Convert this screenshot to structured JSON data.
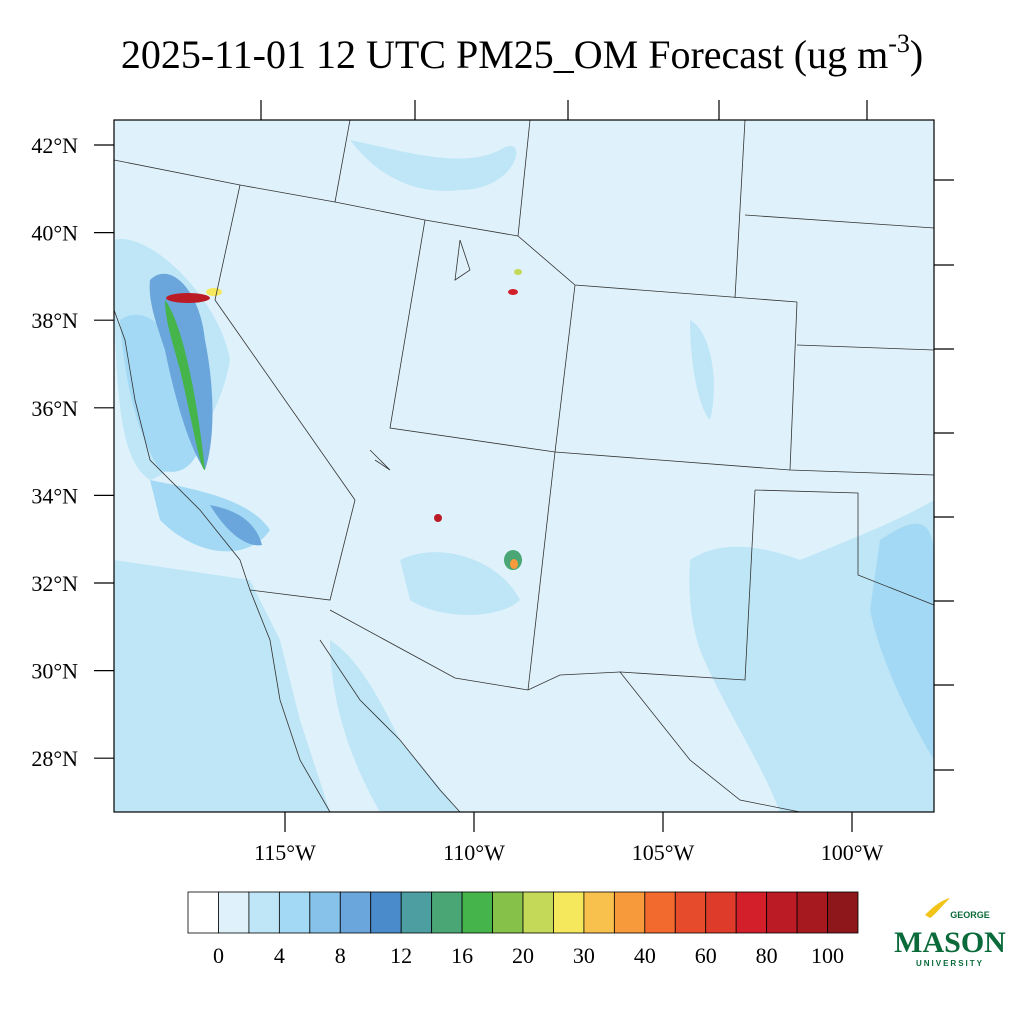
{
  "title": {
    "main": "2025-11-01 12 UTC PM25_OM Forecast (ug m",
    "superscript": "-3",
    "close": ")"
  },
  "map": {
    "lat_labels": [
      "42°N",
      "40°N",
      "38°N",
      "36°N",
      "34°N",
      "32°N",
      "30°N",
      "28°N"
    ],
    "lon_labels": [
      "115°W",
      "110°W",
      "105°W",
      "100°W"
    ]
  },
  "colorbar": {
    "colors": [
      "#ffffff",
      "#dff2fb",
      "#bfe6f7",
      "#a3d9f4",
      "#86c2ea",
      "#6aa6db",
      "#4a8ccb",
      "#4c9ea0",
      "#4aa674",
      "#45b44a",
      "#86c24a",
      "#c3d957",
      "#f6e85c",
      "#f8c04c",
      "#f69a3c",
      "#f26a2e",
      "#e64b2c",
      "#de3b2a",
      "#d21f2a",
      "#bb1b25",
      "#a5191f",
      "#8e171b"
    ],
    "labels": [
      0,
      4,
      8,
      12,
      16,
      20,
      30,
      40,
      60,
      80,
      100
    ]
  },
  "logo": {
    "top": "GEORGE",
    "main": "MASON",
    "bottom": "UNIVERSITY"
  }
}
